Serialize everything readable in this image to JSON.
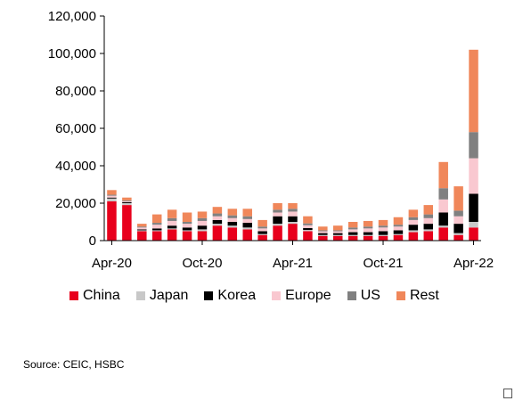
{
  "chart_data": {
    "type": "bar",
    "stacked": true,
    "categories": [
      "Apr-20",
      "May-20",
      "Jun-20",
      "Jul-20",
      "Aug-20",
      "Sep-20",
      "Oct-20",
      "Nov-20",
      "Dec-20",
      "Jan-21",
      "Feb-21",
      "Mar-21",
      "Apr-21",
      "May-21",
      "Jun-21",
      "Jul-21",
      "Aug-21",
      "Sep-21",
      "Oct-21",
      "Nov-21",
      "Dec-21",
      "Jan-22",
      "Feb-22",
      "Mar-22",
      "Apr-22"
    ],
    "x_tick_labels": [
      "Apr-20",
      "Oct-20",
      "Apr-21",
      "Oct-21",
      "Apr-22"
    ],
    "ylim": [
      0,
      120000
    ],
    "y_ticks": [
      "0",
      "20,000",
      "40,000",
      "60,000",
      "80,000",
      "100,000",
      "120,000"
    ],
    "grid": false,
    "legend_position": "bottom",
    "series": [
      {
        "name": "China",
        "color": "#e8001c",
        "values": [
          21000,
          19000,
          5000,
          5000,
          6000,
          5000,
          5000,
          8000,
          7000,
          6000,
          3000,
          8000,
          9000,
          5000,
          2500,
          2500,
          2500,
          2500,
          2500,
          3000,
          4500,
          5000,
          7000,
          3000,
          7000
        ]
      },
      {
        "name": "Japan",
        "color": "#c8c8c8",
        "values": [
          1500,
          1000,
          500,
          500,
          500,
          500,
          1000,
          1000,
          1000,
          1000,
          500,
          1000,
          1000,
          700,
          500,
          500,
          500,
          500,
          500,
          500,
          1000,
          1000,
          1000,
          1000,
          3000
        ]
      },
      {
        "name": "Korea",
        "color": "#000000",
        "values": [
          500,
          500,
          500,
          1000,
          1500,
          1500,
          2000,
          2000,
          2000,
          2500,
          1500,
          4000,
          3000,
          1000,
          1000,
          1000,
          1500,
          1500,
          2000,
          2000,
          3000,
          3000,
          7000,
          5000,
          15000
        ]
      },
      {
        "name": "Europe",
        "color": "#f9c8d0",
        "values": [
          1000,
          500,
          1000,
          2000,
          2500,
          2000,
          2500,
          2000,
          2000,
          2000,
          1500,
          2000,
          2500,
          1500,
          1000,
          1000,
          1500,
          2000,
          2000,
          2000,
          2500,
          3000,
          7000,
          4000,
          19000
        ]
      },
      {
        "name": "US",
        "color": "#808080",
        "values": [
          500,
          500,
          500,
          1000,
          1500,
          1000,
          1500,
          1500,
          1500,
          1500,
          1000,
          1500,
          1500,
          1000,
          500,
          500,
          1000,
          1000,
          1000,
          1000,
          1500,
          2000,
          6000,
          3000,
          14000
        ]
      },
      {
        "name": "Rest",
        "color": "#f0875a",
        "values": [
          2500,
          1500,
          1500,
          4500,
          4500,
          5000,
          3500,
          3500,
          3500,
          4000,
          3500,
          3500,
          3000,
          3800,
          2000,
          2500,
          3000,
          3000,
          3000,
          4000,
          4000,
          5000,
          14000,
          13000,
          44000
        ]
      }
    ]
  },
  "source": "Source:  CEIC, HSBC"
}
